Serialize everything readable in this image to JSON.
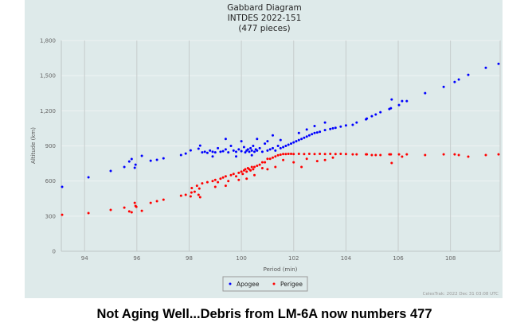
{
  "chart_data": {
    "type": "scatter",
    "title": [
      "Gabbard Diagram",
      "INTDES 2022-151",
      "(477 pieces)"
    ],
    "xlabel": "Period (min)",
    "ylabel": "Altitude (km)",
    "xlim": [
      93.11,
      109.9
    ],
    "ylim": [
      0,
      1800
    ],
    "xticks": [
      "94",
      "96",
      "98",
      "100",
      "102",
      "104",
      "106",
      "108"
    ],
    "xtick_values": [
      94,
      96,
      98,
      100,
      102,
      104,
      106,
      108
    ],
    "yticks": [
      "0",
      "300",
      "600",
      "900",
      "1,200",
      "1,500",
      "1,800"
    ],
    "ytick_values": [
      0,
      300,
      600,
      900,
      1200,
      1500,
      1800
    ],
    "grid": true,
    "legend_position": "bottom-center",
    "credit": "CelesTrak: 2022 Dec 31 03:08 UTC",
    "series": [
      {
        "name": "Apogee",
        "color": "#0000ff",
        "points": [
          [
            93.14,
            550
          ],
          [
            94.15,
            632
          ],
          [
            95.0,
            686
          ],
          [
            95.52,
            720
          ],
          [
            95.71,
            767
          ],
          [
            95.8,
            788
          ],
          [
            95.95,
            740
          ],
          [
            95.92,
            713
          ],
          [
            96.19,
            815
          ],
          [
            96.53,
            774
          ],
          [
            96.77,
            781
          ],
          [
            97.02,
            794
          ],
          [
            97.69,
            822
          ],
          [
            97.87,
            835
          ],
          [
            98.06,
            862
          ],
          [
            98.36,
            876
          ],
          [
            98.42,
            903
          ],
          [
            98.5,
            845
          ],
          [
            98.6,
            850
          ],
          [
            98.7,
            840
          ],
          [
            98.8,
            860
          ],
          [
            98.9,
            850
          ],
          [
            99.0,
            845
          ],
          [
            99.1,
            880
          ],
          [
            99.2,
            850
          ],
          [
            99.3,
            855
          ],
          [
            99.4,
            870
          ],
          [
            99.5,
            845
          ],
          [
            99.6,
            900
          ],
          [
            99.7,
            860
          ],
          [
            99.8,
            850
          ],
          [
            99.9,
            870
          ],
          [
            100.0,
            855
          ],
          [
            100.1,
            890
          ],
          [
            100.15,
            845
          ],
          [
            100.2,
            860
          ],
          [
            100.25,
            870
          ],
          [
            100.3,
            850
          ],
          [
            100.35,
            880
          ],
          [
            100.4,
            860
          ],
          [
            100.45,
            900
          ],
          [
            100.5,
            850
          ],
          [
            100.55,
            870
          ],
          [
            100.6,
            860
          ],
          [
            100.7,
            880
          ],
          [
            100.8,
            850
          ],
          [
            100.9,
            920
          ],
          [
            101.0,
            860
          ],
          [
            101.1,
            870
          ],
          [
            101.2,
            880
          ],
          [
            101.3,
            860
          ],
          [
            101.4,
            900
          ],
          [
            101.5,
            880
          ],
          [
            101.6,
            890
          ],
          [
            101.7,
            900
          ],
          [
            101.8,
            910
          ],
          [
            101.9,
            920
          ],
          [
            102.0,
            930
          ],
          [
            102.1,
            940
          ],
          [
            102.2,
            950
          ],
          [
            102.3,
            960
          ],
          [
            102.4,
            970
          ],
          [
            102.5,
            980
          ],
          [
            102.6,
            990
          ],
          [
            102.7,
            1000
          ],
          [
            102.8,
            1010
          ],
          [
            102.9,
            1015
          ],
          [
            103.0,
            1020
          ],
          [
            103.2,
            1035
          ],
          [
            103.4,
            1045
          ],
          [
            103.6,
            1055
          ],
          [
            103.8,
            1065
          ],
          [
            104.0,
            1075
          ],
          [
            99.4,
            960
          ],
          [
            100.0,
            940
          ],
          [
            100.6,
            960
          ],
          [
            101.0,
            940
          ],
          [
            101.5,
            950
          ],
          [
            102.2,
            1010
          ],
          [
            102.8,
            1070
          ],
          [
            103.2,
            1100
          ],
          [
            103.5,
            1050
          ],
          [
            99.8,
            810
          ],
          [
            100.4,
            820
          ],
          [
            98.9,
            810
          ],
          [
            101.2,
            990
          ],
          [
            102.5,
            1040
          ],
          [
            104.26,
            1080
          ],
          [
            104.41,
            1100
          ],
          [
            104.77,
            1127
          ],
          [
            104.8,
            1134
          ],
          [
            104.99,
            1154
          ],
          [
            105.14,
            1168
          ],
          [
            105.32,
            1188
          ],
          [
            105.66,
            1215
          ],
          [
            105.72,
            1222
          ],
          [
            105.75,
            1297
          ],
          [
            106.03,
            1249
          ],
          [
            106.15,
            1283
          ],
          [
            106.33,
            1283
          ],
          [
            107.03,
            1351
          ],
          [
            107.74,
            1405
          ],
          [
            108.16,
            1446
          ],
          [
            108.32,
            1467
          ],
          [
            108.68,
            1507
          ],
          [
            109.35,
            1568
          ],
          [
            109.84,
            1602
          ]
        ]
      },
      {
        "name": "Perigee",
        "color": "#ff0000",
        "points": [
          [
            93.14,
            312
          ],
          [
            94.15,
            326
          ],
          [
            95.0,
            353
          ],
          [
            95.52,
            373
          ],
          [
            95.71,
            340
          ],
          [
            95.8,
            333
          ],
          [
            95.92,
            414
          ],
          [
            95.95,
            387
          ],
          [
            95.98,
            380
          ],
          [
            96.19,
            346
          ],
          [
            96.53,
            414
          ],
          [
            96.77,
            428
          ],
          [
            97.02,
            441
          ],
          [
            97.69,
            475
          ],
          [
            97.87,
            482
          ],
          [
            98.06,
            469
          ],
          [
            98.09,
            502
          ],
          [
            98.21,
            509
          ],
          [
            98.36,
            482
          ],
          [
            98.42,
            462
          ],
          [
            98.39,
            536
          ],
          [
            98.1,
            540
          ],
          [
            98.3,
            560
          ],
          [
            98.5,
            580
          ],
          [
            98.7,
            590
          ],
          [
            98.9,
            600
          ],
          [
            99.0,
            610
          ],
          [
            99.1,
            590
          ],
          [
            99.2,
            620
          ],
          [
            99.3,
            630
          ],
          [
            99.4,
            640
          ],
          [
            99.5,
            600
          ],
          [
            99.6,
            650
          ],
          [
            99.7,
            660
          ],
          [
            99.8,
            640
          ],
          [
            99.9,
            670
          ],
          [
            100.0,
            680
          ],
          [
            100.05,
            660
          ],
          [
            100.1,
            690
          ],
          [
            100.15,
            700
          ],
          [
            100.2,
            680
          ],
          [
            100.25,
            710
          ],
          [
            100.3,
            700
          ],
          [
            100.35,
            690
          ],
          [
            100.4,
            720
          ],
          [
            100.45,
            700
          ],
          [
            100.5,
            720
          ],
          [
            100.6,
            730
          ],
          [
            100.7,
            740
          ],
          [
            100.8,
            710
          ],
          [
            100.9,
            760
          ],
          [
            101.0,
            790
          ],
          [
            101.1,
            790
          ],
          [
            101.2,
            800
          ],
          [
            101.3,
            810
          ],
          [
            101.4,
            820
          ],
          [
            101.5,
            825
          ],
          [
            101.6,
            830
          ],
          [
            101.7,
            830
          ],
          [
            101.8,
            832
          ],
          [
            101.9,
            832
          ],
          [
            102.0,
            830
          ],
          [
            102.2,
            832
          ],
          [
            102.4,
            830
          ],
          [
            102.6,
            832
          ],
          [
            102.8,
            830
          ],
          [
            103.0,
            832
          ],
          [
            103.2,
            830
          ],
          [
            103.4,
            832
          ],
          [
            103.6,
            830
          ],
          [
            103.8,
            832
          ],
          [
            104.0,
            830
          ],
          [
            99.4,
            560
          ],
          [
            99.9,
            610
          ],
          [
            100.5,
            650
          ],
          [
            101.0,
            700
          ],
          [
            100.8,
            760
          ],
          [
            101.3,
            720
          ],
          [
            101.6,
            780
          ],
          [
            102.0,
            760
          ],
          [
            102.5,
            790
          ],
          [
            102.3,
            720
          ],
          [
            103.2,
            780
          ],
          [
            103.5,
            800
          ],
          [
            102.9,
            770
          ],
          [
            100.2,
            620
          ],
          [
            99.0,
            550
          ],
          [
            104.26,
            828
          ],
          [
            104.41,
            828
          ],
          [
            104.77,
            828
          ],
          [
            104.8,
            828
          ],
          [
            104.99,
            822
          ],
          [
            105.14,
            822
          ],
          [
            105.32,
            822
          ],
          [
            105.66,
            828
          ],
          [
            105.72,
            828
          ],
          [
            105.75,
            754
          ],
          [
            106.03,
            828
          ],
          [
            106.15,
            808
          ],
          [
            106.33,
            828
          ],
          [
            107.03,
            822
          ],
          [
            107.74,
            828
          ],
          [
            108.16,
            828
          ],
          [
            108.32,
            822
          ],
          [
            108.68,
            808
          ],
          [
            109.35,
            822
          ],
          [
            109.84,
            828
          ]
        ]
      }
    ]
  },
  "caption": "Not Aging Well...Debris from LM-6A now numbers 477"
}
